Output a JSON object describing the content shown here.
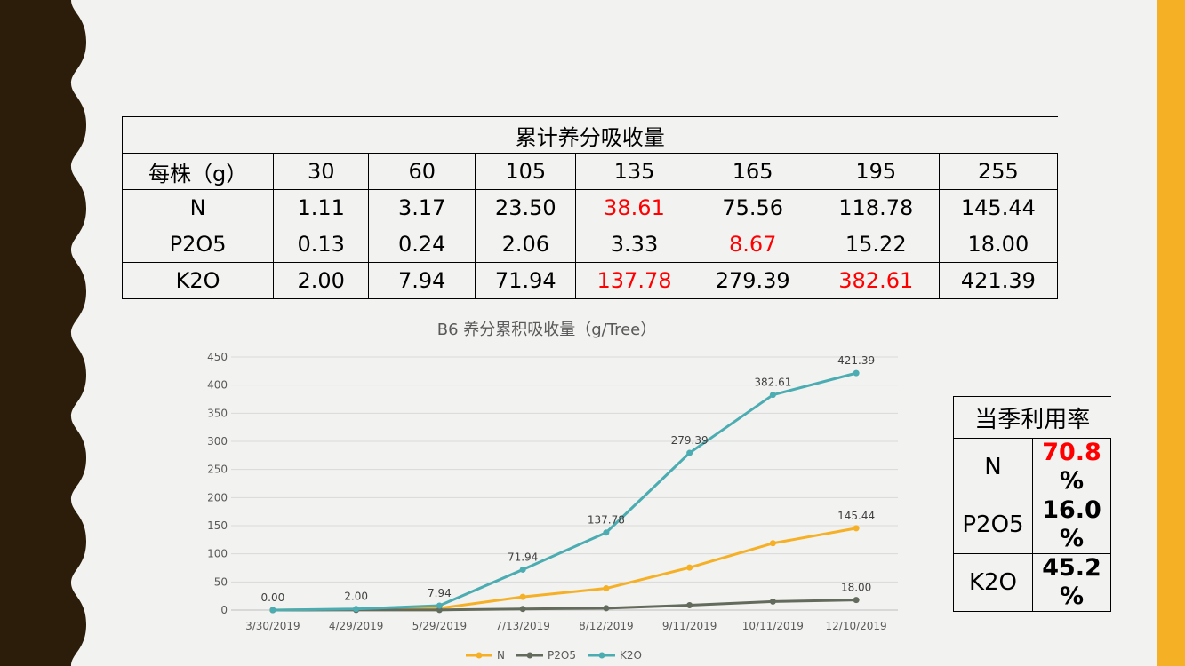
{
  "table": {
    "title": "累计养分吸收量",
    "header": [
      "每株（g）",
      "30",
      "60",
      "105",
      "135",
      "165",
      "195",
      "255"
    ],
    "rows": [
      {
        "label": "N",
        "cells": [
          "1.11",
          "3.17",
          "23.50",
          "38.61",
          "75.56",
          "118.78",
          "145.44"
        ],
        "red": [
          false,
          false,
          false,
          true,
          false,
          false,
          false
        ]
      },
      {
        "label": "P2O5",
        "cells": [
          "0.13",
          "0.24",
          "2.06",
          "3.33",
          "8.67",
          "15.22",
          "18.00"
        ],
        "red": [
          false,
          false,
          false,
          false,
          true,
          false,
          false
        ]
      },
      {
        "label": "K2O",
        "cells": [
          "2.00",
          "7.94",
          "71.94",
          "137.78",
          "279.39",
          "382.61",
          "421.39"
        ],
        "red": [
          false,
          false,
          false,
          true,
          false,
          true,
          false
        ]
      }
    ]
  },
  "rate_table": {
    "title": "当季利用率",
    "rows": [
      {
        "label": "N",
        "value": "70.8",
        "unit": "%",
        "red": true
      },
      {
        "label": "P2O5",
        "value": "16.0",
        "unit": "%",
        "red": false
      },
      {
        "label": "K2O",
        "value": "45.2",
        "unit": "%",
        "red": false
      }
    ]
  },
  "colors": {
    "N": "#f5b026",
    "P2O5": "#636b5c",
    "K2O": "#4bacb2",
    "gridline": "#d9d9d9",
    "red_text": "#ff0000",
    "left_band": "#2b1d0a",
    "right_band": "#f5b026"
  },
  "chart_data": {
    "type": "line",
    "title": "B6 养分累积吸收量（g/Tree）",
    "xlabel": "",
    "ylabel": "",
    "categories": [
      "3/30/2019",
      "4/29/2019",
      "5/29/2019",
      "7/13/2019",
      "8/12/2019",
      "9/11/2019",
      "10/11/2019",
      "12/10/2019"
    ],
    "ylim": [
      0,
      450
    ],
    "yticks": [
      0,
      50,
      100,
      150,
      200,
      250,
      300,
      350,
      400,
      450
    ],
    "grid": true,
    "legend_position": "bottom",
    "series": [
      {
        "name": "N",
        "values": [
          0,
          1.11,
          3.17,
          23.5,
          38.61,
          75.56,
          118.78,
          145.44
        ],
        "labels": [
          "",
          "",
          "",
          "",
          "",
          "",
          "",
          "145.44"
        ]
      },
      {
        "name": "P2O5",
        "values": [
          0,
          0.13,
          0.24,
          2.06,
          3.33,
          8.67,
          15.22,
          18.0
        ],
        "labels": [
          "",
          "",
          "",
          "",
          "",
          "",
          "",
          "18.00"
        ]
      },
      {
        "name": "K2O",
        "values": [
          0,
          2.0,
          7.94,
          71.94,
          137.78,
          279.39,
          382.61,
          421.39
        ],
        "labels": [
          "0.00",
          "2.00",
          "7.94",
          "71.94",
          "137.78",
          "279.39",
          "382.61",
          "421.39"
        ]
      }
    ]
  }
}
